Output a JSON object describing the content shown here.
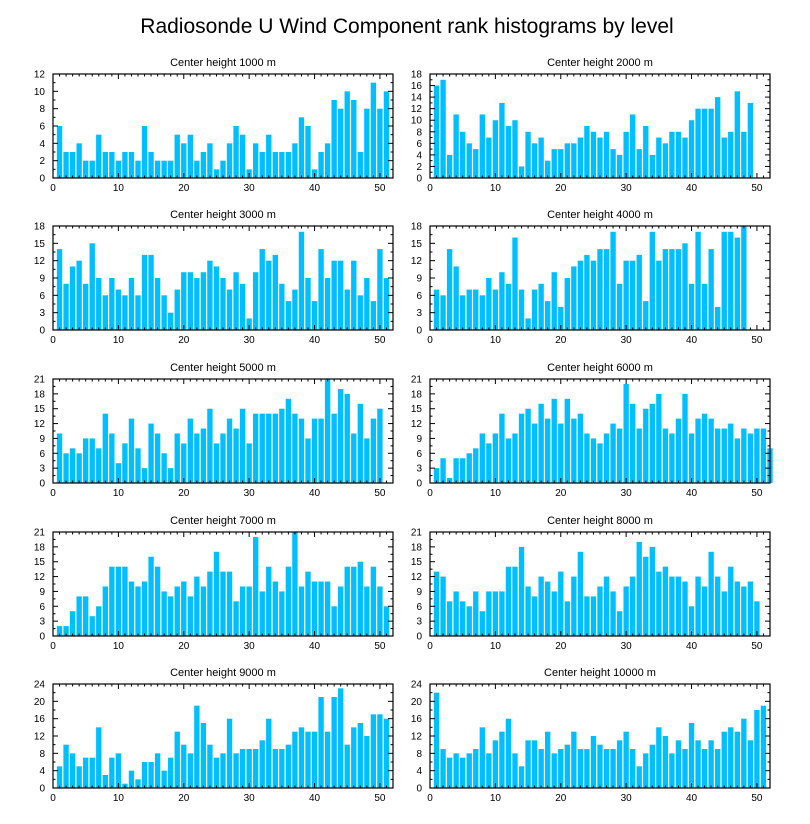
{
  "title": "Radiosonde U Wind Component rank histograms by level",
  "colors": {
    "bar": "#00BFFF",
    "axis": "#000000",
    "background": "#ffffff"
  },
  "chart_data": [
    {
      "type": "bar",
      "title": "Center height 1000 m",
      "xlim": [
        0,
        52
      ],
      "ylim": [
        0,
        12
      ],
      "xticks": [
        0,
        10,
        20,
        30,
        40,
        50
      ],
      "yticks": [
        0,
        2,
        4,
        6,
        8,
        10,
        12
      ],
      "values": [
        6,
        3,
        3,
        4,
        2,
        2,
        5,
        3,
        3,
        2,
        3,
        3,
        2,
        6,
        3,
        2,
        2,
        2,
        5,
        4,
        5,
        2,
        3,
        4,
        1,
        2,
        4,
        6,
        5,
        1,
        4,
        3,
        5,
        3,
        3,
        3,
        4,
        7,
        6,
        1,
        3,
        4,
        9,
        8,
        10,
        9,
        3,
        8,
        11,
        8,
        10
      ]
    },
    {
      "type": "bar",
      "title": "Center height 2000 m",
      "xlim": [
        0,
        52
      ],
      "ylim": [
        0,
        18
      ],
      "xticks": [
        0,
        10,
        20,
        30,
        40,
        50
      ],
      "yticks": [
        0,
        2,
        4,
        6,
        8,
        10,
        12,
        14,
        16,
        18
      ],
      "values": [
        16,
        17,
        4,
        11,
        8,
        6,
        5,
        11,
        7,
        10,
        13,
        9,
        10,
        2,
        8,
        6,
        7,
        3,
        5,
        5,
        6,
        6,
        7,
        9,
        8,
        7,
        8,
        5,
        4,
        8,
        11,
        5,
        9,
        4,
        7,
        6,
        8,
        8,
        7,
        10,
        12,
        12,
        12,
        14,
        7,
        8,
        15,
        8,
        13
      ]
    },
    {
      "type": "bar",
      "title": "Center height 3000 m",
      "xlim": [
        0,
        52
      ],
      "ylim": [
        0,
        18
      ],
      "xticks": [
        0,
        10,
        20,
        30,
        40,
        50
      ],
      "yticks": [
        0,
        3,
        6,
        9,
        12,
        15,
        18
      ],
      "values": [
        14,
        8,
        11,
        12,
        8,
        15,
        9,
        6,
        9,
        7,
        6,
        9,
        6,
        13,
        13,
        9,
        6,
        3,
        7,
        10,
        10,
        9,
        10,
        12,
        11,
        9,
        7,
        10,
        8,
        2,
        10,
        14,
        12,
        13,
        8,
        5,
        7,
        17,
        9,
        5,
        14,
        9,
        12,
        12,
        7,
        12,
        6,
        9,
        5,
        14,
        9
      ]
    },
    {
      "type": "bar",
      "title": "Center height 4000 m",
      "xlim": [
        0,
        52
      ],
      "ylim": [
        0,
        18
      ],
      "xticks": [
        0,
        10,
        20,
        30,
        40,
        50
      ],
      "yticks": [
        0,
        3,
        6,
        9,
        12,
        15,
        18
      ],
      "values": [
        7,
        6,
        14,
        11,
        6,
        7,
        7,
        6,
        9,
        7,
        10,
        8,
        16,
        7,
        2,
        7,
        8,
        5,
        10,
        4,
        9,
        11,
        12,
        13,
        12,
        14,
        14,
        17,
        8,
        12,
        12,
        13,
        5,
        17,
        12,
        14,
        14,
        14,
        15,
        8,
        17,
        8,
        14,
        4,
        17,
        17,
        16,
        18
      ]
    },
    {
      "type": "bar",
      "title": "Center height 5000 m",
      "xlim": [
        0,
        52
      ],
      "ylim": [
        0,
        21
      ],
      "xticks": [
        0,
        10,
        20,
        30,
        40,
        50
      ],
      "yticks": [
        0,
        3,
        6,
        9,
        12,
        15,
        18,
        21
      ],
      "values": [
        10,
        6,
        7,
        6,
        9,
        9,
        7,
        14,
        10,
        4,
        8,
        13,
        7,
        3,
        12,
        10,
        6,
        3,
        10,
        8,
        13,
        10,
        11,
        15,
        8,
        10,
        13,
        11,
        15,
        8,
        14,
        14,
        14,
        14,
        15,
        17,
        14,
        13,
        9,
        13,
        13,
        21,
        14,
        19,
        18,
        10,
        16,
        9,
        13,
        15
      ]
    },
    {
      "type": "bar",
      "title": "Center height 6000 m",
      "xlim": [
        0,
        52
      ],
      "ylim": [
        0,
        21
      ],
      "xticks": [
        0,
        10,
        20,
        30,
        40,
        50
      ],
      "yticks": [
        0,
        3,
        6,
        9,
        12,
        15,
        18,
        21
      ],
      "values": [
        3,
        5,
        1,
        5,
        5,
        6,
        7,
        10,
        8,
        10,
        14,
        9,
        10,
        14,
        15,
        12,
        16,
        13,
        17,
        12,
        17,
        13,
        14,
        10,
        9,
        8,
        10,
        12,
        11,
        20,
        16,
        11,
        15,
        16,
        18,
        11,
        10,
        13,
        18,
        10,
        13,
        14,
        13,
        11,
        11,
        12,
        9,
        11,
        10,
        11,
        11,
        7
      ]
    },
    {
      "type": "bar",
      "title": "Center height 7000 m",
      "xlim": [
        0,
        52
      ],
      "ylim": [
        0,
        21
      ],
      "xticks": [
        0,
        10,
        20,
        30,
        40,
        50
      ],
      "yticks": [
        0,
        3,
        6,
        9,
        12,
        15,
        18,
        21
      ],
      "values": [
        2,
        2,
        5,
        8,
        8,
        4,
        6,
        10,
        14,
        14,
        14,
        11,
        10,
        11,
        16,
        14,
        9,
        8,
        10,
        11,
        8,
        12,
        10,
        13,
        17,
        13,
        13,
        7,
        10,
        10,
        20,
        9,
        14,
        11,
        9,
        14,
        21,
        10,
        13,
        11,
        11,
        11,
        6,
        10,
        14,
        14,
        15,
        10,
        14,
        10,
        6
      ]
    },
    {
      "type": "bar",
      "title": "Center height 8000 m",
      "xlim": [
        0,
        52
      ],
      "ylim": [
        0,
        21
      ],
      "xticks": [
        0,
        10,
        20,
        30,
        40,
        50
      ],
      "yticks": [
        0,
        3,
        6,
        9,
        12,
        15,
        18,
        21
      ],
      "values": [
        13,
        12,
        7,
        9,
        7,
        6,
        9,
        5,
        9,
        9,
        9,
        14,
        14,
        18,
        10,
        8,
        12,
        11,
        9,
        13,
        7,
        12,
        17,
        8,
        8,
        10,
        12,
        9,
        5,
        10,
        12,
        19,
        16,
        18,
        13,
        14,
        12,
        12,
        11,
        6,
        12,
        10,
        17,
        12,
        9,
        14,
        11,
        10,
        11,
        7
      ]
    },
    {
      "type": "bar",
      "title": "Center height 9000 m",
      "xlim": [
        0,
        52
      ],
      "ylim": [
        0,
        24
      ],
      "xticks": [
        0,
        10,
        20,
        30,
        40,
        50
      ],
      "yticks": [
        0,
        4,
        8,
        12,
        16,
        20,
        24
      ],
      "values": [
        5,
        10,
        8,
        5,
        7,
        7,
        14,
        3,
        7,
        8,
        1,
        4,
        2,
        6,
        6,
        8,
        4,
        7,
        13,
        10,
        8,
        19,
        15,
        10,
        7,
        8,
        16,
        8,
        9,
        9,
        9,
        11,
        16,
        9,
        9,
        10,
        13,
        14,
        13,
        13,
        21,
        13,
        21,
        23,
        10,
        14,
        15,
        12,
        17,
        17,
        16
      ]
    },
    {
      "type": "bar",
      "title": "Center height 10000 m",
      "xlim": [
        0,
        52
      ],
      "ylim": [
        0,
        24
      ],
      "xticks": [
        0,
        10,
        20,
        30,
        40,
        50
      ],
      "yticks": [
        0,
        4,
        8,
        12,
        16,
        20,
        24
      ],
      "values": [
        22,
        9,
        7,
        8,
        7,
        8,
        9,
        14,
        8,
        11,
        13,
        16,
        8,
        5,
        11,
        11,
        9,
        13,
        8,
        9,
        10,
        13,
        9,
        9,
        12,
        10,
        9,
        9,
        11,
        13,
        9,
        5,
        8,
        10,
        14,
        12,
        8,
        11,
        9,
        15,
        11,
        9,
        11,
        9,
        13,
        14,
        13,
        16,
        11,
        18,
        19
      ]
    }
  ]
}
